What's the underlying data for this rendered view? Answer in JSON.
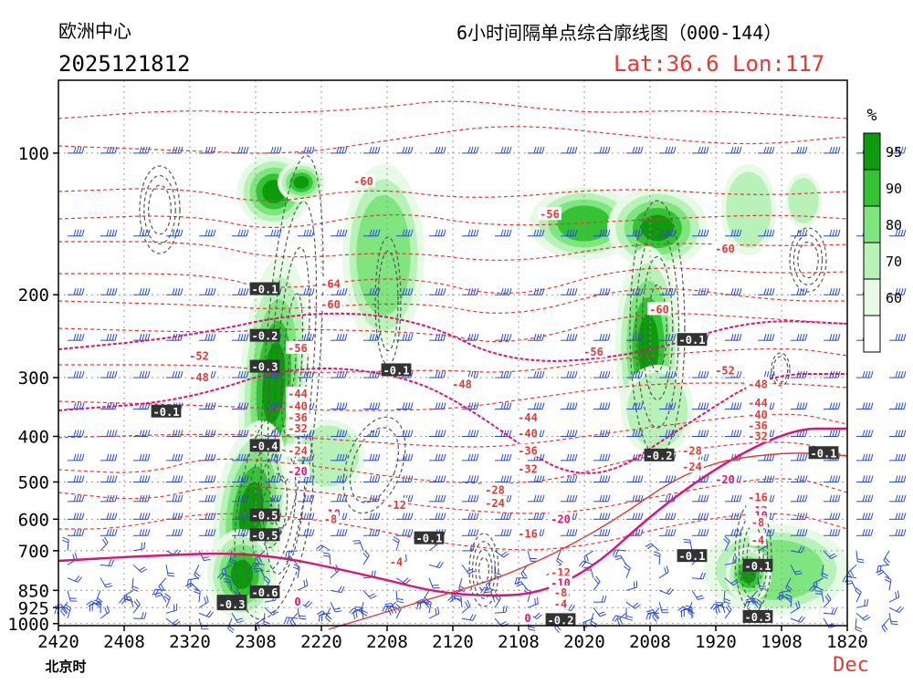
{
  "header": {
    "center_name": "欧洲中心",
    "init_time": "2025121812",
    "title": "6小时间隔单点综合廓线图（000-144）",
    "location": "Lat:36.6  Lon:117"
  },
  "colors": {
    "temperature": "#e53935",
    "key_isotherm": "#e0127a",
    "omega": "#555555",
    "wind": "#2a4bd7",
    "rh_60": "#e6fae6",
    "rh_70": "#b9f2b9",
    "rh_80": "#7fe67f",
    "rh_90": "#34c334",
    "rh_95": "#0d9a0d"
  },
  "chart_data": {
    "type": "heatmap",
    "xlabel": "北京时",
    "month_label": "Dec",
    "x_ticks": [
      "2420",
      "2408",
      "2320",
      "2308",
      "2220",
      "2208",
      "2120",
      "2108",
      "2020",
      "2008",
      "1920",
      "1908",
      "1820"
    ],
    "y_ticks": [
      "100",
      "200",
      "300",
      "400",
      "500",
      "600",
      "700",
      "850",
      "925",
      "1000"
    ],
    "grid": true,
    "colorbar": {
      "unit": "%",
      "levels": [
        "95",
        "90",
        "80",
        "70",
        "60"
      ],
      "colors": [
        "#0d9a0d",
        "#34c334",
        "#7fe67f",
        "#b9f2b9",
        "#e6fae6"
      ]
    },
    "temperature_labels": [
      {
        "t": "2220",
        "p": 190,
        "v": "-64"
      },
      {
        "t": "2220",
        "p": 210,
        "v": "-60"
      },
      {
        "t": "2008",
        "p": 215,
        "v": "-60"
      },
      {
        "t": "2214",
        "p": 115,
        "v": "-60"
      },
      {
        "t": "2104",
        "p": 135,
        "v": "-56"
      },
      {
        "t": "1920",
        "p": 160,
        "v": "-60"
      },
      {
        "t": "2302",
        "p": 260,
        "v": "-56"
      },
      {
        "t": "2020",
        "p": 265,
        "v": "-56"
      },
      {
        "t": "2320",
        "p": 270,
        "v": "-52"
      },
      {
        "t": "2208",
        "p": 290,
        "v": "-52"
      },
      {
        "t": "1920",
        "p": 290,
        "v": "-52"
      },
      {
        "t": "2320",
        "p": 300,
        "v": "-48"
      },
      {
        "t": "2120",
        "p": 310,
        "v": "-48"
      },
      {
        "t": "1914",
        "p": 310,
        "v": "-48"
      },
      {
        "t": "2302",
        "p": 325,
        "v": "-44"
      },
      {
        "t": "2108",
        "p": 365,
        "v": "-44"
      },
      {
        "t": "1914",
        "p": 340,
        "v": "-44"
      },
      {
        "t": "2302",
        "p": 345,
        "v": "-40"
      },
      {
        "t": "2108",
        "p": 395,
        "v": "-40"
      },
      {
        "t": "1914",
        "p": 360,
        "v": "-40"
      },
      {
        "t": "2302",
        "p": 365,
        "v": "-36"
      },
      {
        "t": "1914",
        "p": 380,
        "v": "-36"
      },
      {
        "t": "2302",
        "p": 385,
        "v": "-32"
      },
      {
        "t": "1914",
        "p": 400,
        "v": "-32"
      },
      {
        "t": "2108",
        "p": 430,
        "v": "-36"
      },
      {
        "t": "1926",
        "p": 430,
        "v": "-28"
      },
      {
        "t": "2302",
        "p": 430,
        "v": "-24"
      },
      {
        "t": "1926",
        "p": 465,
        "v": "-24"
      },
      {
        "t": "2108",
        "p": 470,
        "v": "-32"
      },
      {
        "t": "2302",
        "p": 475,
        "v": "-20"
      },
      {
        "t": "2114",
        "p": 520,
        "v": "-28"
      },
      {
        "t": "1920",
        "p": 495,
        "v": "-20"
      },
      {
        "t": "2114",
        "p": 555,
        "v": "-24"
      },
      {
        "t": "1914",
        "p": 540,
        "v": "-16"
      },
      {
        "t": "2208",
        "p": 560,
        "v": "-12"
      },
      {
        "t": "2102",
        "p": 600,
        "v": "-20"
      },
      {
        "t": "2220",
        "p": 585,
        "v": "-10"
      },
      {
        "t": "1914",
        "p": 575,
        "v": "-12"
      },
      {
        "t": "2220",
        "p": 600,
        "v": "-8"
      },
      {
        "t": "1914",
        "p": 590,
        "v": "-10"
      },
      {
        "t": "2108",
        "p": 645,
        "v": "-16"
      },
      {
        "t": "1914",
        "p": 610,
        "v": "-8"
      },
      {
        "t": "1914",
        "p": 665,
        "v": "-4"
      },
      {
        "t": "2208",
        "p": 740,
        "v": "-4"
      },
      {
        "t": "2026",
        "p": 780,
        "v": "-12"
      },
      {
        "t": "2026",
        "p": 820,
        "v": "-10"
      },
      {
        "t": "2102",
        "p": 860,
        "v": "-8"
      },
      {
        "t": "2102",
        "p": 910,
        "v": "-4"
      },
      {
        "t": "2302",
        "p": 900,
        "v": "0"
      },
      {
        "t": "2108",
        "p": 975,
        "v": "0"
      }
    ],
    "omega_labels": [
      {
        "t": "2308",
        "p": 195,
        "v": "-0.1"
      },
      {
        "t": "2308",
        "p": 245,
        "v": "-0.2"
      },
      {
        "t": "2308",
        "p": 285,
        "v": "-0.3"
      },
      {
        "t": "2308",
        "p": 420,
        "v": "-0.4"
      },
      {
        "t": "2308",
        "p": 590,
        "v": "-0.5"
      },
      {
        "t": "2308",
        "p": 650,
        "v": "-0.5"
      },
      {
        "t": "2308",
        "p": 860,
        "v": "-0.6"
      },
      {
        "t": "2314",
        "p": 900,
        "v": "-0.4"
      },
      {
        "t": "2314",
        "p": 912,
        "v": "-0.3"
      },
      {
        "t": "2208",
        "p": 290,
        "v": "-0.1"
      },
      {
        "t": "2202",
        "p": 660,
        "v": "-0.1"
      },
      {
        "t": "2326",
        "p": 355,
        "v": "-0.1"
      },
      {
        "t": "2102",
        "p": 985,
        "v": "-0.2"
      },
      {
        "t": "2002",
        "p": 250,
        "v": "-0.1"
      },
      {
        "t": "2008",
        "p": 440,
        "v": "-0.2"
      },
      {
        "t": "2002",
        "p": 720,
        "v": "-0.1"
      },
      {
        "t": "1914",
        "p": 755,
        "v": "-0.1"
      },
      {
        "t": "1914",
        "p": 970,
        "v": "-0.3"
      },
      {
        "t": "1902",
        "p": 435,
        "v": "-0.1"
      }
    ]
  }
}
